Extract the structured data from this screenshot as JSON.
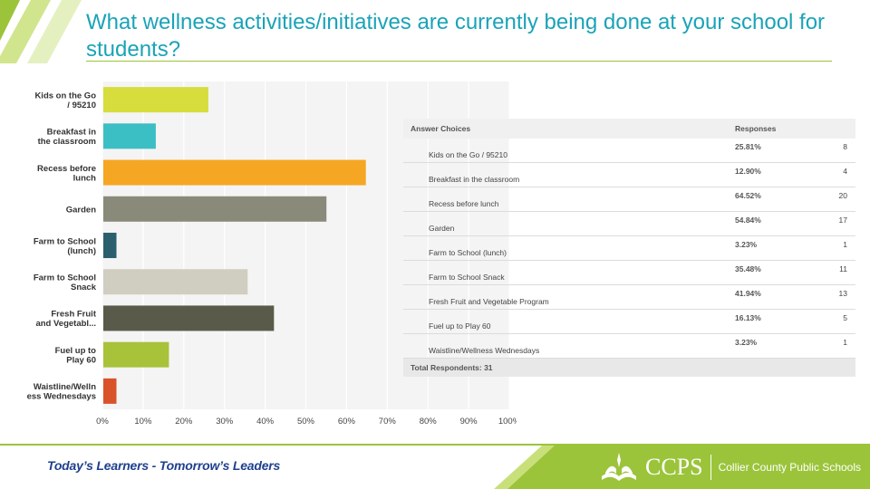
{
  "slide": {
    "title": "What wellness activities/initiatives are currently being done at your school for students?"
  },
  "chart_data": {
    "type": "bar",
    "orientation": "horizontal",
    "categories": [
      [
        "Kids on the Go",
        "/ 95210"
      ],
      [
        "Breakfast in",
        "the classroom"
      ],
      [
        "Recess before",
        "lunch"
      ],
      [
        "Garden"
      ],
      [
        "Farm to School",
        "(lunch)"
      ],
      [
        "Farm to School",
        "Snack"
      ],
      [
        "Fresh Fruit",
        "and Vegetabl..."
      ],
      [
        "Fuel up to",
        "Play 60"
      ],
      [
        "Waistline/Welln",
        "ess Wednesdays"
      ]
    ],
    "values": [
      25.81,
      12.9,
      64.52,
      54.84,
      3.23,
      35.48,
      41.94,
      16.13,
      3.23
    ],
    "colors": [
      "#d6dd3c",
      "#3bbfc4",
      "#f5a623",
      "#8a8a7a",
      "#2c5f6e",
      "#d0cec0",
      "#5a5a4a",
      "#a8c23a",
      "#d9532a"
    ],
    "xlim": [
      0,
      100
    ],
    "x_ticks": [
      "0%",
      "10%",
      "20%",
      "30%",
      "40%",
      "50%",
      "60%",
      "70%",
      "80%",
      "90%",
      "100%"
    ],
    "grid": true
  },
  "table": {
    "header_choices": "Answer Choices",
    "header_responses": "Responses",
    "rows": [
      {
        "choice": "Kids on the Go / 95210",
        "pct": "25.81%",
        "count": "8"
      },
      {
        "choice": "Breakfast in the classroom",
        "pct": "12.90%",
        "count": "4"
      },
      {
        "choice": "Recess before lunch",
        "pct": "64.52%",
        "count": "20"
      },
      {
        "choice": "Garden",
        "pct": "54.84%",
        "count": "17"
      },
      {
        "choice": "Farm to School (lunch)",
        "pct": "3.23%",
        "count": "1"
      },
      {
        "choice": "Farm to School Snack",
        "pct": "35.48%",
        "count": "11"
      },
      {
        "choice": "Fresh Fruit and Vegetable Program",
        "pct": "41.94%",
        "count": "13"
      },
      {
        "choice": "Fuel up to Play 60",
        "pct": "16.13%",
        "count": "5"
      },
      {
        "choice": "Waistline/Wellness Wednesdays",
        "pct": "3.23%",
        "count": "1"
      }
    ],
    "total_label": "Total Respondents: 31"
  },
  "footer": {
    "tagline": "Today’s Learners - Tomorrow’s Leaders",
    "logo_text": "CCPS",
    "logo_subtitle": "Collier County Public Schools",
    "band_color": "#9bc43b"
  }
}
